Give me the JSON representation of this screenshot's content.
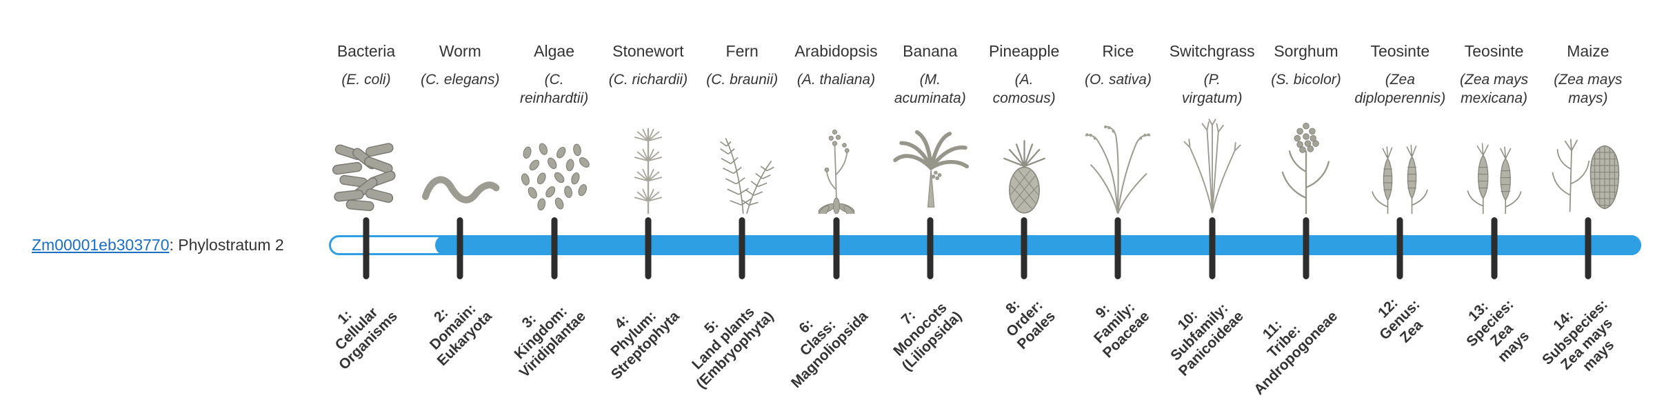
{
  "gene": {
    "id": "Zm00001eb303770",
    "suffix": ": Phylostratum 2"
  },
  "colors": {
    "bar_fill": "#2f9fe3",
    "tick": "#2d2d2d",
    "link": "#1a6fc4",
    "text": "#333333"
  },
  "organisms": [
    {
      "common": "Bacteria",
      "scientific": "(E. coli)",
      "icon": "bacteria-icon",
      "stratum_label": "1:\nCellular\nOrganisms"
    },
    {
      "common": "Worm",
      "scientific": "(C. elegans)",
      "icon": "worm-icon",
      "stratum_label": "2:\nDomain:\nEukaryota"
    },
    {
      "common": "Algae",
      "scientific": "(C.\nreinhardtii)",
      "icon": "algae-icon",
      "stratum_label": "3:\nKingdom:\nViridiplantae"
    },
    {
      "common": "Stonewort",
      "scientific": "(C. richardii)",
      "icon": "stonewort-icon",
      "stratum_label": "4:\nPhylum:\nStreptophyta"
    },
    {
      "common": "Fern",
      "scientific": "(C. braunii)",
      "icon": "fern-icon",
      "stratum_label": "5:\nLand plants\n(Embryophyta)"
    },
    {
      "common": "Arabidopsis",
      "scientific": "(A. thaliana)",
      "icon": "arabidopsis-icon",
      "stratum_label": "6:\nClass:\nMagnoliopsida"
    },
    {
      "common": "Banana",
      "scientific": "(M.\nacuminata)",
      "icon": "banana-icon",
      "stratum_label": "7:\nMonocots\n(Liliopsida)"
    },
    {
      "common": "Pineapple",
      "scientific": "(A.\ncomosus)",
      "icon": "pineapple-icon",
      "stratum_label": "8:\nOrder:\nPoales"
    },
    {
      "common": "Rice",
      "scientific": "(O. sativa)",
      "icon": "rice-icon",
      "stratum_label": "9:\nFamily:\nPoaceae"
    },
    {
      "common": "Switchgrass",
      "scientific": "(P.\nvirgatum)",
      "icon": "switchgrass-icon",
      "stratum_label": "10:\nSubfamily:\nPanicoideae"
    },
    {
      "common": "Sorghum",
      "scientific": "(S. bicolor)",
      "icon": "sorghum-icon",
      "stratum_label": "11:\nTribe:\nAndropogoneae"
    },
    {
      "common": "Teosinte",
      "scientific": "(Zea\ndiploperennis)",
      "icon": "teosinte-diploperennis-icon",
      "stratum_label": "12:\nGenus:\nZea"
    },
    {
      "common": "Teosinte",
      "scientific": "(Zea mays\nmexicana)",
      "icon": "teosinte-mexicana-icon",
      "stratum_label": "13:\nSpecies:\nZea\nmays"
    },
    {
      "common": "Maize",
      "scientific": "(Zea mays\nmays)",
      "icon": "maize-icon",
      "stratum_label": "14:\nSubspecies:\nZea mays\nmays"
    }
  ]
}
